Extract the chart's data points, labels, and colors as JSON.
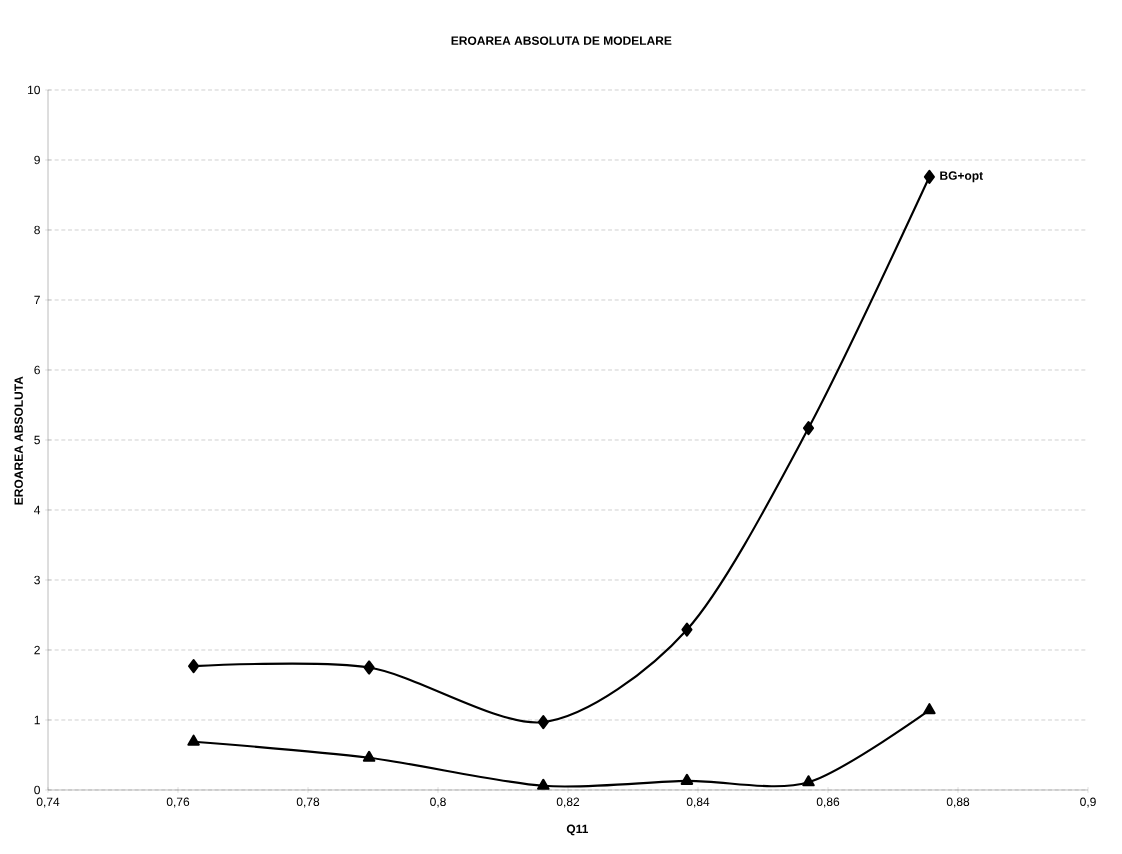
{
  "chart_data": {
    "type": "line",
    "title": "EROAREA ABSOLUTA DE MODELARE",
    "xlabel": "Q11",
    "ylabel": "EROAREA ABSOLUTA",
    "x": [
      0.7624,
      0.7894,
      0.8162,
      0.8383,
      0.857,
      0.8756
    ],
    "series": [
      {
        "name": "BG+opt",
        "color": "#000000",
        "marker": "diamond",
        "values": [
          1.77,
          1.75,
          0.97,
          2.29,
          5.17,
          8.76
        ]
      },
      {
        "color": "#000000",
        "marker": "triangle",
        "values": [
          0.69,
          0.46,
          0.06,
          0.13,
          0.11,
          1.14
        ]
      }
    ],
    "xlim": [
      0.74,
      0.9
    ],
    "ylim": [
      0,
      10
    ],
    "xticks": [
      {
        "value": 0.74,
        "label": "0,74"
      },
      {
        "value": 0.76,
        "label": "0,76"
      },
      {
        "value": 0.78,
        "label": "0,78"
      },
      {
        "value": 0.8,
        "label": "0,8"
      },
      {
        "value": 0.82,
        "label": "0,82"
      },
      {
        "value": 0.84,
        "label": "0,84"
      },
      {
        "value": 0.86,
        "label": "0,86"
      },
      {
        "value": 0.88,
        "label": "0,88"
      },
      {
        "value": 0.9,
        "label": "0,9"
      }
    ],
    "yticks": [
      0,
      1,
      2,
      3,
      4,
      5,
      6,
      7,
      8,
      9,
      10
    ],
    "grid": "y",
    "legend": false,
    "line_style": "solid"
  }
}
